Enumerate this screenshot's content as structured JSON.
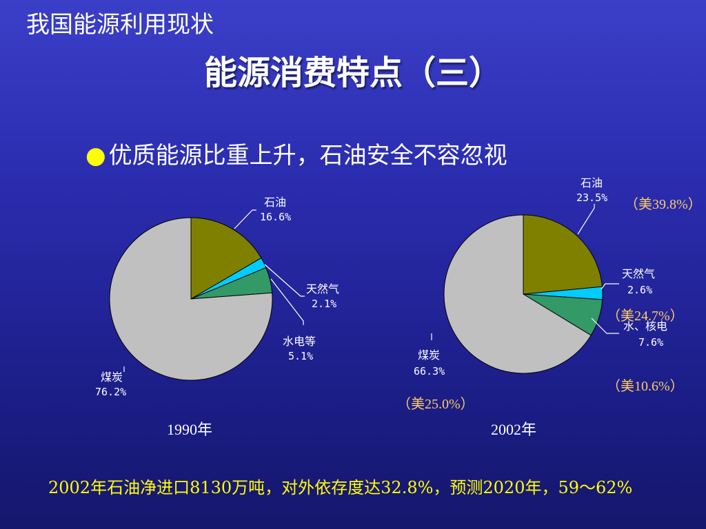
{
  "slide": {
    "section_title": "我国能源利用现状",
    "main_title": "能源消费特点（三）",
    "bullet_text": "优质能源比重上升，石油安全不容忽视",
    "footer_text": "2002年石油净进口8130万吨，对外依存度达32.8%，预测2020年，59～62%"
  },
  "chart_data": [
    {
      "type": "pie",
      "year_label": "1990年",
      "slices": [
        {
          "name": "石油",
          "value": 16.6,
          "value_label": "16.6%",
          "color": "#808000"
        },
        {
          "name": "天然气",
          "value": 2.1,
          "value_label": "2.1%",
          "color": "#00ccff"
        },
        {
          "name": "水电等",
          "value": 5.1,
          "value_label": "5.1%",
          "color": "#339966"
        },
        {
          "name": "煤炭",
          "value": 76.2,
          "value_label": "76.2%",
          "color": "#c0c0c0"
        }
      ]
    },
    {
      "type": "pie",
      "year_label": "2002年",
      "slices": [
        {
          "name": "石油",
          "value": 23.5,
          "value_label": "23.5%",
          "color": "#808000",
          "us_comparison": "（美39.8%）"
        },
        {
          "name": "天然气",
          "value": 2.6,
          "value_label": "2.6%",
          "color": "#00ccff",
          "us_comparison": "（美24.7%）"
        },
        {
          "name": "水、核电",
          "value": 7.6,
          "value_label": "7.6%",
          "color": "#339966",
          "us_comparison": "（美10.6%）"
        },
        {
          "name": "煤炭",
          "value": 66.3,
          "value_label": "66.3%",
          "color": "#c0c0c0",
          "us_comparison": "（美25.0%）"
        }
      ]
    }
  ]
}
